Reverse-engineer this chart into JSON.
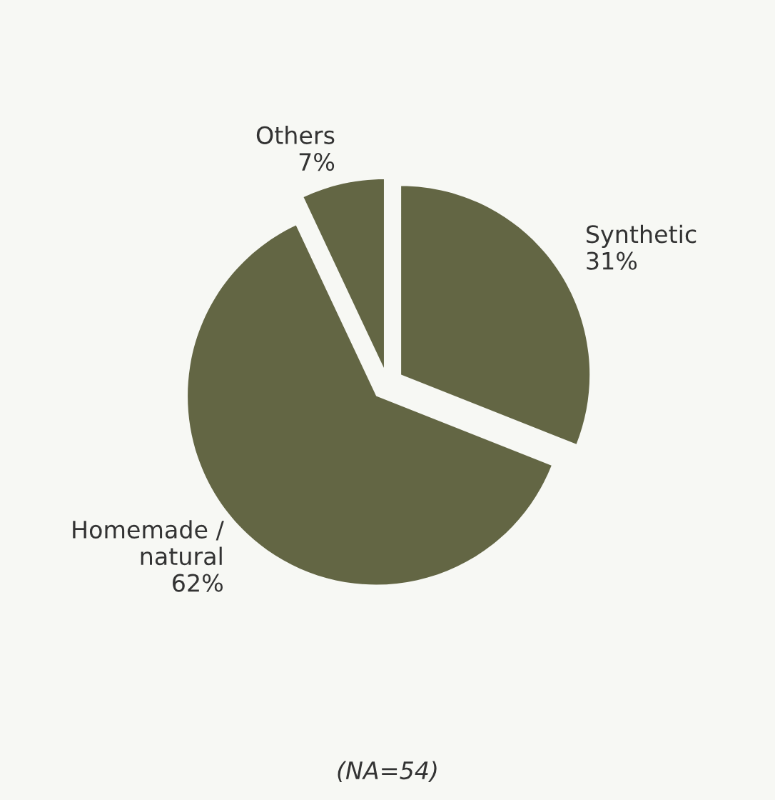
{
  "chart_data": {
    "type": "pie",
    "categories": [
      "Synthetic",
      "Homemade /\nnatural",
      "Others"
    ],
    "values": [
      31,
      62,
      7
    ],
    "colors": [
      "#636644",
      "#636644",
      "#636644"
    ],
    "value_labels": [
      "31%",
      "62%",
      "7%"
    ],
    "annotations": [
      "(NA=54)"
    ]
  }
}
